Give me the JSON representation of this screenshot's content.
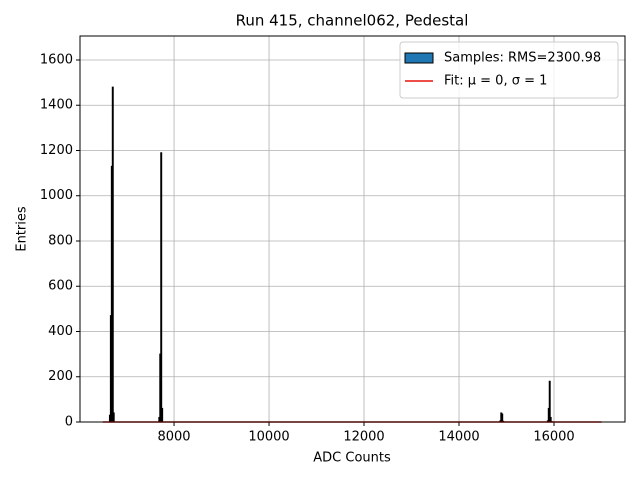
{
  "chart_data": {
    "type": "histogram",
    "title": "Run 415, channel062, Pedestal",
    "xlabel": "ADC Counts",
    "ylabel": "Entries",
    "bins": [
      6500,
      6640,
      6660,
      6680,
      6700,
      6720,
      6740,
      7680,
      7700,
      7720,
      7740,
      7760,
      7780,
      14860,
      14880,
      14900,
      14920,
      14940,
      15860,
      15880,
      15900,
      15920,
      15940,
      15960,
      17000
    ],
    "series": [
      {
        "name": "Samples: RMS=2300.98",
        "color": "#1f77b4",
        "edgecolor": "#000000",
        "values": [
          0,
          30,
          470,
          1130,
          1480,
          40,
          0,
          20,
          300,
          1190,
          60,
          0,
          0,
          5,
          40,
          35,
          3,
          0,
          5,
          60,
          180,
          20,
          2,
          0
        ]
      }
    ],
    "lines": [
      {
        "name": "Fit: μ = 0, σ = 1",
        "color": "#e8140c",
        "x": [
          6500,
          17000
        ],
        "y": [
          0,
          0
        ]
      }
    ],
    "xlim": [
      6020,
      17495
    ],
    "ylim": [
      0,
      1706
    ],
    "xticks": [
      8000,
      10000,
      12000,
      14000,
      16000
    ],
    "yticks": [
      0,
      200,
      400,
      600,
      800,
      1000,
      1200,
      1400,
      1600
    ],
    "grid": true,
    "legend": "upper right"
  }
}
